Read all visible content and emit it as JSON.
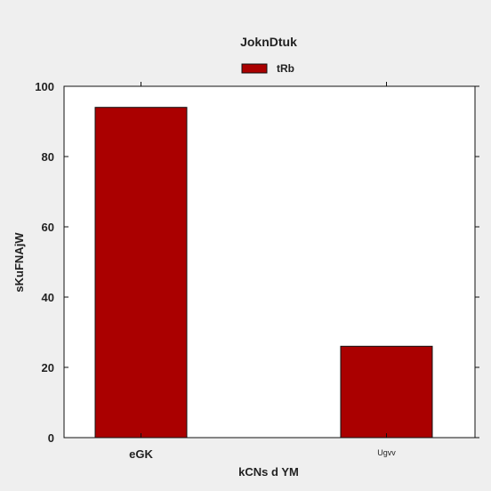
{
  "chart_data": {
    "type": "bar",
    "title": "JoknDtuk",
    "xlabel": "kCNs d YM",
    "ylabel": "sKuFNAjW",
    "categories": [
      "eGK",
      "Ugvv"
    ],
    "series": [
      {
        "name": "tRb",
        "values": [
          94,
          26
        ],
        "color": "#aa0000"
      }
    ],
    "ylim": [
      0,
      100
    ],
    "yticks": [
      "0",
      "20",
      "40",
      "60",
      "80",
      "100"
    ],
    "grid": false,
    "legend_position": "top-center"
  }
}
